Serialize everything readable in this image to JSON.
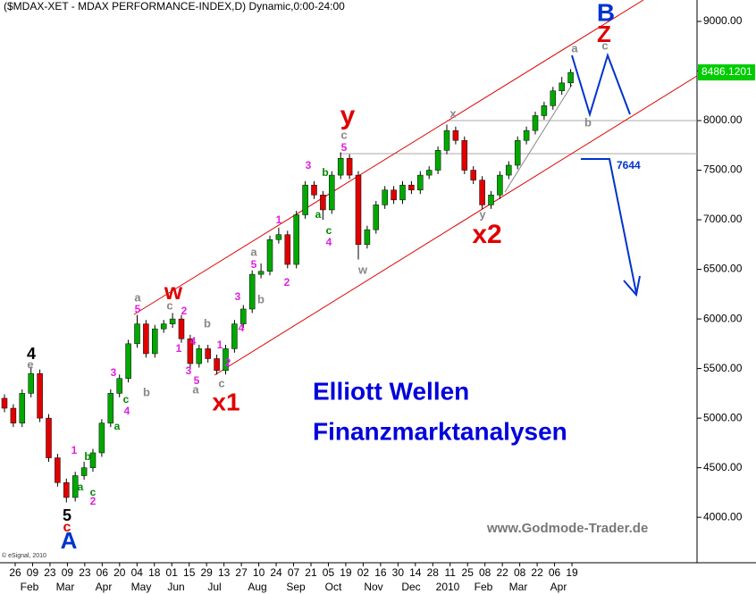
{
  "chart_data": {
    "type": "candlestick",
    "title": "($MDAX-XET - MDAX PERFORMANCE-INDEX,D) Dynamic,0:00-24:00",
    "x_tick_labels": [
      "26",
      "09",
      "23",
      "09",
      "23",
      "06",
      "20",
      "04",
      "18",
      "01",
      "15",
      "29",
      "13",
      "27",
      "10",
      "24",
      "07",
      "21",
      "05",
      "19",
      "02",
      "16",
      "30",
      "14",
      "28",
      "11",
      "25",
      "08",
      "22",
      "08",
      "22",
      "06",
      "19"
    ],
    "x_month_labels": [
      "Feb",
      "Mar",
      "Apr",
      "May",
      "Jun",
      "Jul",
      "Aug",
      "Sep",
      "Oct",
      "Nov",
      "Dec",
      "2010",
      "Feb",
      "Mar",
      "Apr"
    ],
    "ylim": [
      3560,
      9216
    ],
    "yticks": [
      {
        "value": 4000,
        "label": "4000.00"
      },
      {
        "value": 4500,
        "label": "4500.00"
      },
      {
        "value": 5000,
        "label": "5000.00"
      },
      {
        "value": 5500,
        "label": "5500.00"
      },
      {
        "value": 6000,
        "label": "6000.00"
      },
      {
        "value": 6500,
        "label": "6500.00"
      },
      {
        "value": 7000,
        "label": "7000.00"
      },
      {
        "value": 7500,
        "label": "7500.00"
      },
      {
        "value": 8000,
        "label": "8000.00"
      },
      {
        "value": 8500,
        "label": "8500.00"
      },
      {
        "value": 9000,
        "label": "9000.00"
      }
    ],
    "last_value": 8486.1201,
    "up_color": "#00a800",
    "down_color": "#e00000",
    "candles": [
      [
        5200,
        5240,
        5060,
        5100
      ],
      [
        5100,
        5140,
        4910,
        4950
      ],
      [
        4950,
        5290,
        4910,
        5250
      ],
      [
        5250,
        5520,
        5210,
        5450
      ],
      [
        5450,
        5490,
        4960,
        5000
      ],
      [
        5000,
        5040,
        4560,
        4600
      ],
      [
        4600,
        4640,
        4310,
        4350
      ],
      [
        4350,
        4390,
        4150,
        4200
      ],
      [
        4200,
        4460,
        4160,
        4420
      ],
      [
        4420,
        4560,
        4380,
        4500
      ],
      [
        4500,
        4690,
        4460,
        4650
      ],
      [
        4650,
        4990,
        4610,
        4950
      ],
      [
        4950,
        5290,
        4910,
        5250
      ],
      [
        5250,
        5440,
        5210,
        5400
      ],
      [
        5400,
        5790,
        5360,
        5750
      ],
      [
        5750,
        6040,
        5710,
        5950
      ],
      [
        5950,
        5990,
        5610,
        5650
      ],
      [
        5650,
        5940,
        5610,
        5900
      ],
      [
        5900,
        5990,
        5860,
        5950
      ],
      [
        5950,
        6060,
        5910,
        6000
      ],
      [
        6000,
        6040,
        5760,
        5800
      ],
      [
        5800,
        5840,
        5510,
        5550
      ],
      [
        5550,
        5740,
        5510,
        5700
      ],
      [
        5700,
        5740,
        5560,
        5600
      ],
      [
        5600,
        5640,
        5440,
        5480
      ],
      [
        5480,
        5740,
        5440,
        5700
      ],
      [
        5700,
        5990,
        5660,
        5950
      ],
      [
        5950,
        6140,
        5910,
        6100
      ],
      [
        6100,
        6490,
        6060,
        6450
      ],
      [
        6450,
        6560,
        6410,
        6480
      ],
      [
        6480,
        6840,
        6440,
        6800
      ],
      [
        6800,
        6920,
        6760,
        6850
      ],
      [
        6850,
        6890,
        6510,
        6550
      ],
      [
        6550,
        7090,
        6510,
        7050
      ],
      [
        7050,
        7390,
        7010,
        7350
      ],
      [
        7350,
        7390,
        7210,
        7250
      ],
      [
        7250,
        7290,
        7000,
        7100
      ],
      [
        7100,
        7490,
        7060,
        7450
      ],
      [
        7450,
        7680,
        7410,
        7620
      ],
      [
        7620,
        7660,
        7410,
        7450
      ],
      [
        7450,
        7490,
        6600,
        6750
      ],
      [
        6750,
        6940,
        6710,
        6900
      ],
      [
        6900,
        7190,
        6860,
        7150
      ],
      [
        7150,
        7340,
        7110,
        7300
      ],
      [
        7300,
        7340,
        7160,
        7200
      ],
      [
        7200,
        7390,
        7160,
        7350
      ],
      [
        7350,
        7390,
        7260,
        7300
      ],
      [
        7300,
        7490,
        7260,
        7450
      ],
      [
        7450,
        7540,
        7410,
        7500
      ],
      [
        7500,
        7740,
        7460,
        7700
      ],
      [
        7700,
        7960,
        7660,
        7900
      ],
      [
        7900,
        7940,
        7760,
        7800
      ],
      [
        7800,
        7840,
        7460,
        7500
      ],
      [
        7500,
        7540,
        7360,
        7400
      ],
      [
        7400,
        7440,
        7110,
        7150
      ],
      [
        7150,
        7290,
        7110,
        7250
      ],
      [
        7250,
        7490,
        7210,
        7450
      ],
      [
        7450,
        7590,
        7410,
        7550
      ],
      [
        7550,
        7840,
        7510,
        7800
      ],
      [
        7800,
        7940,
        7760,
        7900
      ],
      [
        7900,
        8090,
        7860,
        8050
      ],
      [
        8050,
        8190,
        8010,
        8150
      ],
      [
        8150,
        8340,
        8110,
        8300
      ],
      [
        8300,
        8440,
        8260,
        8380
      ],
      [
        8380,
        8520,
        8340,
        8486
      ]
    ],
    "annotations": [
      "B",
      "Z",
      "w",
      "y",
      "x1",
      "x2",
      "4",
      "5",
      "c",
      "A",
      "a",
      "c",
      "b",
      "x",
      "y",
      "w",
      "e",
      "a",
      "c",
      "b",
      "a",
      "b",
      "b",
      "a",
      "c",
      "c",
      "5",
      "3",
      "1",
      "5",
      "3",
      "2",
      "4",
      "1",
      "2",
      "4",
      "1",
      "3",
      "5",
      "2",
      "5",
      "3",
      "4",
      "2",
      "1",
      "4",
      "b",
      "a",
      "c",
      "b",
      "a",
      "c",
      "c",
      "a"
    ],
    "level_label": "7644",
    "headline": [
      "Elliott Wellen",
      "Finanzmarktanalysen"
    ],
    "website": "www.Godmode-Trader.de",
    "copyright": "© eSignal, 2010"
  }
}
